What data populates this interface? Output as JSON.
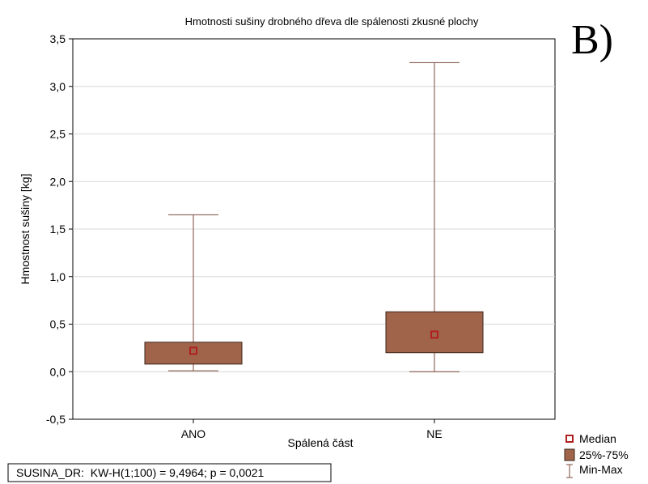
{
  "chart_data": {
    "type": "boxplot",
    "title": "Hmotnosti sušiny drobného dřeva dle spálenosti zkusné plochy",
    "panel_label": "B)",
    "xlabel": "Spálená část",
    "ylabel": "Hmostnost sušiny [kg]",
    "ylim": [
      -0.5,
      3.5
    ],
    "yticks": [
      -0.5,
      0.0,
      0.5,
      1.0,
      1.5,
      2.0,
      2.5,
      3.0,
      3.5
    ],
    "ytick_labels": [
      "-0,5",
      "0,0",
      "0,5",
      "1,0",
      "1,5",
      "2,0",
      "2,5",
      "3,0",
      "3,5"
    ],
    "grid": true,
    "categories": [
      "ANO",
      "NE"
    ],
    "boxes": [
      {
        "category": "ANO",
        "min": 0.01,
        "q1": 0.08,
        "median": 0.22,
        "q3": 0.31,
        "max": 1.65
      },
      {
        "category": "NE",
        "min": 0.0,
        "q1": 0.2,
        "median": 0.39,
        "q3": 0.63,
        "max": 3.25
      }
    ],
    "legend": {
      "placement": "bottom-right",
      "items": [
        "Median",
        "25%-75%",
        "Min-Max"
      ]
    },
    "stats_text": "SUSINA_DR:  KW-H(1;100) = 9,4964; p = 0,0021",
    "colors": {
      "box_fill": "#a0644b",
      "box_stroke": "#3a2418",
      "whisker": "#7a4a3a",
      "median_marker": "#b02020",
      "grid": "#d8d8d8"
    }
  }
}
